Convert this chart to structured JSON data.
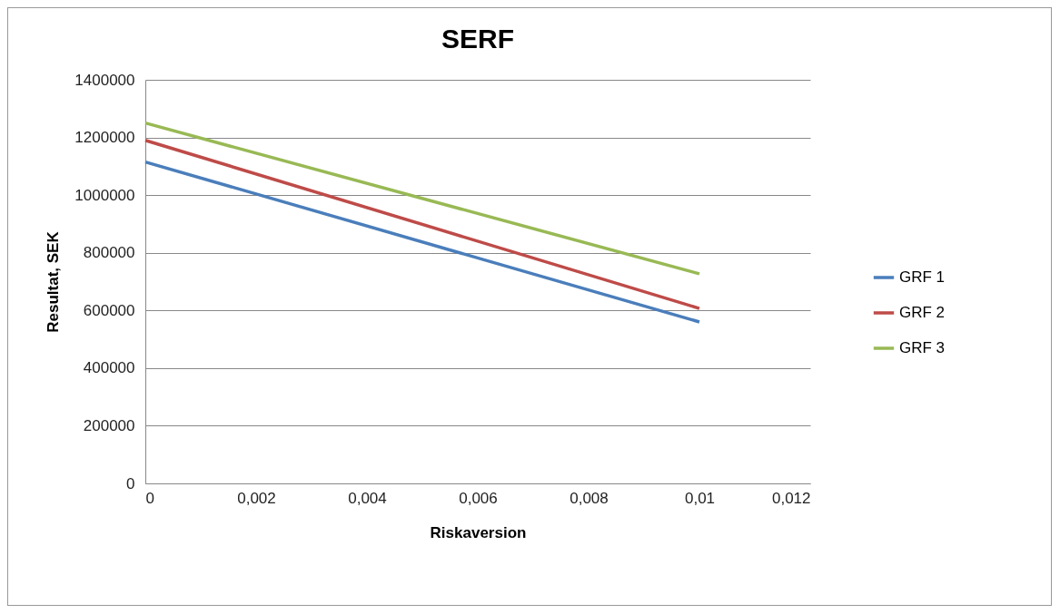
{
  "chart_data": {
    "type": "line",
    "title": "SERF",
    "xlabel": "Riskaversion",
    "ylabel": "Resultat, SEK",
    "x": [
      0,
      0.01
    ],
    "series": [
      {
        "name": "GRF 1",
        "color": "#4a7ebb",
        "values": [
          1115000,
          560000
        ]
      },
      {
        "name": "GRF 2",
        "color": "#be4b48",
        "values": [
          1190000,
          607000
        ]
      },
      {
        "name": "GRF 3",
        "color": "#98b954",
        "values": [
          1250000,
          727000
        ]
      }
    ],
    "xlim": [
      0,
      0.012
    ],
    "xticks": [
      0,
      {
        "value": 0.002,
        "label": "0,002"
      },
      {
        "value": 0.004,
        "label": "0,004"
      },
      {
        "value": 0.006,
        "label": "0,006"
      },
      {
        "value": 0.008,
        "label": "0,008"
      },
      {
        "value": 0.01,
        "label": "0,01"
      },
      {
        "value": 0.012,
        "label": "0,012"
      }
    ],
    "ylim": [
      0,
      1400000
    ],
    "yticks": [
      0,
      200000,
      400000,
      600000,
      800000,
      1000000,
      1200000,
      1400000
    ],
    "grid": "y",
    "legend": "right",
    "marker": "none",
    "line_style": "solid"
  }
}
